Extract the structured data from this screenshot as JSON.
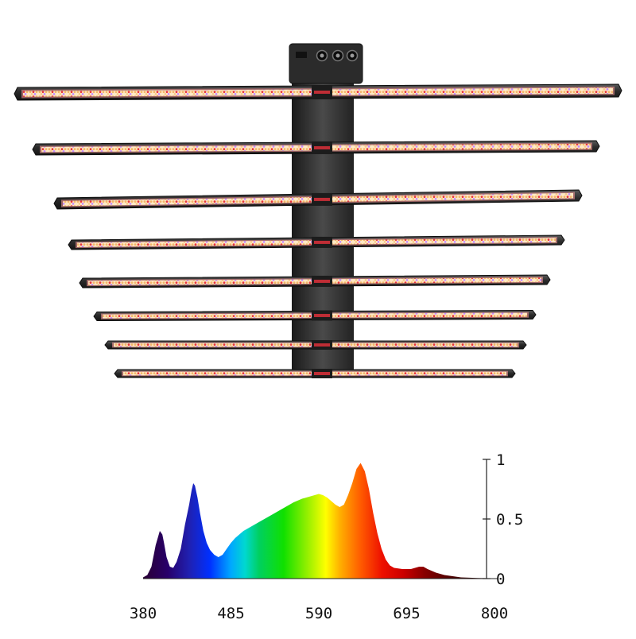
{
  "product": {
    "name": "8-bar LED grow light",
    "bar_count": 8,
    "colors": {
      "frame": "#2a2a2a",
      "led_red": "#e8323c",
      "led_warm": "#f2c27a",
      "led_purple": "#c58cff",
      "glow": "#ff9a9a"
    }
  },
  "chart_data": {
    "type": "area",
    "title": "",
    "xlabel": "",
    "ylabel": "",
    "xlim": [
      380,
      800
    ],
    "ylim": [
      0,
      1
    ],
    "x_ticks": [
      "380",
      "485",
      "590",
      "695",
      "800"
    ],
    "y_ticks": [
      "0",
      "0.5",
      "1"
    ],
    "grid": false,
    "fill": "visible-spectrum gradient",
    "x": [
      380,
      385,
      390,
      395,
      400,
      403,
      405,
      408,
      412,
      416,
      420,
      425,
      430,
      435,
      438,
      440,
      442,
      445,
      448,
      452,
      456,
      460,
      465,
      470,
      475,
      480,
      485,
      490,
      495,
      500,
      510,
      520,
      530,
      540,
      550,
      560,
      570,
      580,
      590,
      595,
      600,
      610,
      615,
      620,
      625,
      630,
      635,
      640,
      645,
      650,
      655,
      660,
      665,
      670,
      675,
      680,
      690,
      700,
      710,
      715,
      720,
      730,
      740,
      750,
      760,
      780,
      800
    ],
    "values": [
      0.01,
      0.03,
      0.1,
      0.28,
      0.4,
      0.37,
      0.3,
      0.18,
      0.1,
      0.09,
      0.14,
      0.25,
      0.45,
      0.62,
      0.74,
      0.8,
      0.78,
      0.68,
      0.55,
      0.4,
      0.3,
      0.24,
      0.2,
      0.18,
      0.2,
      0.25,
      0.3,
      0.34,
      0.37,
      0.4,
      0.44,
      0.48,
      0.52,
      0.56,
      0.6,
      0.64,
      0.67,
      0.69,
      0.71,
      0.7,
      0.68,
      0.62,
      0.6,
      0.62,
      0.7,
      0.8,
      0.92,
      0.97,
      0.9,
      0.75,
      0.55,
      0.38,
      0.25,
      0.16,
      0.11,
      0.09,
      0.08,
      0.08,
      0.1,
      0.1,
      0.08,
      0.05,
      0.03,
      0.02,
      0.01,
      0.005,
      0.003
    ]
  }
}
